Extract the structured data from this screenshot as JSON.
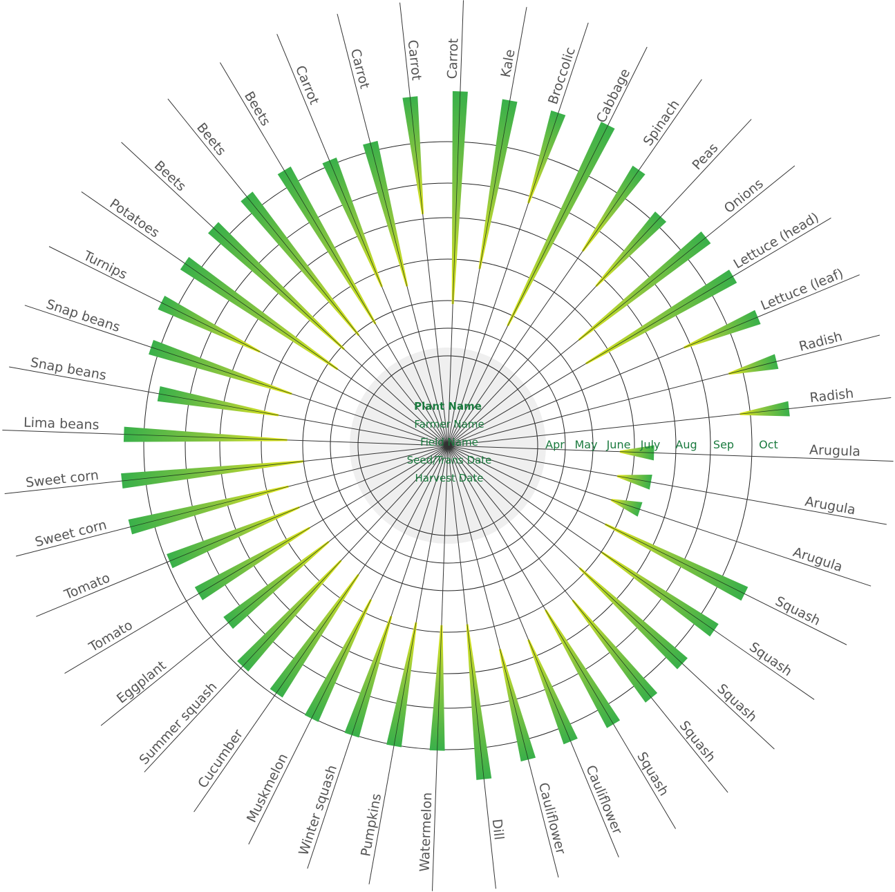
{
  "chart_data": {
    "type": "radial-gantt",
    "center_legend": [
      "Plant Name",
      "Farmer Name",
      "Field Name",
      "Seed/Trans Date",
      "Harvest Date"
    ],
    "months": [
      "Apr",
      "May",
      "June",
      "July",
      "Aug",
      "Sep",
      "Oct"
    ],
    "colors": {
      "bar_dark": "#39b04a",
      "bar_mid": "#8cc63f",
      "bar_light": "#e8e81a",
      "rings": "#222222",
      "spokes": "#333333",
      "center": "#efefef"
    },
    "series": [
      {
        "plant": "Carrot",
        "start": 1.5,
        "end": 7.1
      },
      {
        "plant": "Kale",
        "start": 2.5,
        "end": 7.0
      },
      {
        "plant": "Broccolic",
        "start": 4.5,
        "end": 7.0
      },
      {
        "plant": "Cabbage",
        "start": 1.3,
        "end": 7.2
      },
      {
        "plant": "Spinach",
        "start": 4.0,
        "end": 6.6
      },
      {
        "plant": "Peas",
        "start": 3.5,
        "end": 6.0
      },
      {
        "plant": "Onions",
        "start": 2.2,
        "end": 6.5
      },
      {
        "plant": "Lettuce (head)",
        "start": 2.0,
        "end": 6.5
      },
      {
        "plant": "Lettuce (leaf)",
        "start": 4.5,
        "end": 6.6
      },
      {
        "plant": "Radish",
        "start": 5.4,
        "end": 6.7
      },
      {
        "plant": "Radish",
        "start": 5.5,
        "end": 6.8
      },
      {
        "plant": "Arugula",
        "start": 2.3,
        "end": 3.2
      },
      {
        "plant": "Arugula",
        "start": 2.3,
        "end": 3.2
      },
      {
        "plant": "Arugula",
        "start": 2.3,
        "end": 3.1
      },
      {
        "plant": "Squash",
        "start": 2.4,
        "end": 6.5
      },
      {
        "plant": "Squash",
        "start": 2.7,
        "end": 6.3
      },
      {
        "plant": "Squash",
        "start": 2.5,
        "end": 6.2
      },
      {
        "plant": "Squash",
        "start": 3.0,
        "end": 6.3
      },
      {
        "plant": "Squash",
        "start": 2.8,
        "end": 6.3
      },
      {
        "plant": "Cauliflower",
        "start": 3.3,
        "end": 6.2
      },
      {
        "plant": "Cauliflower",
        "start": 3.3,
        "end": 6.3
      },
      {
        "plant": "Dill",
        "start": 2.5,
        "end": 6.6
      },
      {
        "plant": "Watermelon",
        "start": 2.5,
        "end": 5.8
      },
      {
        "plant": "Pumpkins",
        "start": 2.5,
        "end": 5.8
      },
      {
        "plant": "Winter squash",
        "start": 2.5,
        "end": 5.8
      },
      {
        "plant": "Muskmelon",
        "start": 2.3,
        "end": 5.8
      },
      {
        "plant": "Cucumber",
        "start": 1.9,
        "end": 5.7
      },
      {
        "plant": "Summer squash",
        "start": 1.9,
        "end": 5.7
      },
      {
        "plant": "Eggplant",
        "start": 1.8,
        "end": 5.2
      },
      {
        "plant": "Tomato",
        "start": 2.0,
        "end": 5.4
      },
      {
        "plant": "Tomato",
        "start": 2.0,
        "end": 5.7
      },
      {
        "plant": "Sweet corn",
        "start": 2.1,
        "end": 6.4
      },
      {
        "plant": "Sweet corn",
        "start": 1.6,
        "end": 6.4
      },
      {
        "plant": "Lima beans",
        "start": 2.0,
        "end": 6.3
      },
      {
        "plant": "Snap beans",
        "start": 2.3,
        "end": 5.5
      },
      {
        "plant": "Snap beans",
        "start": 2.1,
        "end": 6.0
      },
      {
        "plant": "Turnips",
        "start": 3.3,
        "end": 6.2
      },
      {
        "plant": "Potatoes",
        "start": 1.3,
        "end": 6.2
      },
      {
        "plant": "Beets",
        "start": 1.5,
        "end": 6.2
      },
      {
        "plant": "Beets",
        "start": 1.5,
        "end": 6.2
      },
      {
        "plant": "Beets",
        "start": 1.5,
        "end": 6.2
      },
      {
        "plant": "Carrot",
        "start": 2.3,
        "end": 5.9
      },
      {
        "plant": "Carrot",
        "start": 2.1,
        "end": 6.0
      },
      {
        "plant": "Carrot",
        "start": 3.9,
        "end": 7.0
      }
    ]
  }
}
